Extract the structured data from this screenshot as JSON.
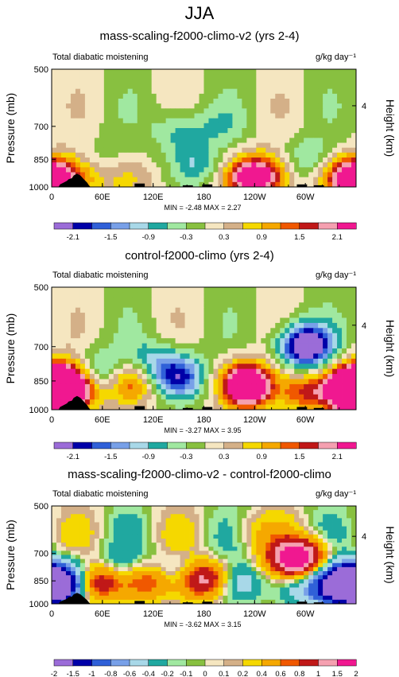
{
  "page": {
    "title": "JJA"
  },
  "colors": {
    "palette": [
      "#9b6cd8",
      "#0000a8",
      "#3060d8",
      "#78a0e8",
      "#a8d8e8",
      "#20a8a0",
      "#a0e8a0",
      "#88c040",
      "#f5e6c0",
      "#d4b088",
      "#f5d800",
      "#f5a800",
      "#f05800",
      "#c01818",
      "#f5a0b0",
      "#f01890"
    ],
    "land": "#000000"
  },
  "chart_data": [
    {
      "type": "heatmap",
      "title": "mass-scaling-f2000-climo-v2 (yrs 2-4)",
      "left_label": "Total diabatic moistening",
      "units_label": "g/kg day⁻¹",
      "ylabel": "Pressure (mb)",
      "ylabel_right": "Height (km)",
      "yticks": [
        "500",
        "700",
        "850",
        "1000"
      ],
      "yticks_right": [
        "4"
      ],
      "xticks": [
        "0",
        "60E",
        "120E",
        "180",
        "120W",
        "60W"
      ],
      "minmax": "MIN = -2.48  MAX =  2.27",
      "colorbar_labels": [
        "-2.1",
        "-1.5",
        "-0.9",
        "-0.3",
        "0.3",
        "0.9",
        "1.5",
        "2.1"
      ],
      "colorbar_label_slots": [
        1,
        3,
        5,
        7,
        9,
        11,
        13,
        15
      ],
      "levels": [
        -2.1,
        -1.8,
        -1.5,
        -1.2,
        -0.9,
        -0.6,
        -0.3,
        0,
        0.3,
        0.6,
        0.9,
        1.2,
        1.5,
        1.8,
        2.1
      ],
      "min": -2.48,
      "max": 2.27,
      "features": [
        {
          "lon": 6,
          "p": 960,
          "value": 1.2
        },
        {
          "lon": 40,
          "p": 930,
          "value": 0.9
        },
        {
          "lon": 55,
          "p": 870,
          "value": -0.5
        },
        {
          "lon": 90,
          "p": 950,
          "value": 0.7
        },
        {
          "lon": 170,
          "p": 880,
          "value": -0.9
        },
        {
          "lon": 150,
          "p": 720,
          "value": -0.8
        },
        {
          "lon": 200,
          "p": 700,
          "value": -0.4
        },
        {
          "lon": 230,
          "p": 950,
          "value": 2.0
        },
        {
          "lon": 255,
          "p": 930,
          "value": 1.4
        },
        {
          "lon": 300,
          "p": 850,
          "value": -0.7
        },
        {
          "lon": 350,
          "p": 950,
          "value": 2.2
        }
      ]
    },
    {
      "type": "heatmap",
      "title": "control-f2000-climo (yrs 2-4)",
      "left_label": "Total diabatic moistening",
      "units_label": "g/kg day⁻¹",
      "ylabel": "Pressure (mb)",
      "ylabel_right": "Height (km)",
      "yticks": [
        "500",
        "700",
        "850",
        "1000"
      ],
      "yticks_right": [
        "4"
      ],
      "xticks": [
        "0",
        "60E",
        "120E",
        "180",
        "120W",
        "60W"
      ],
      "minmax": "MIN = -3.27  MAX =  3.95",
      "colorbar_labels": [
        "-2.1",
        "-1.5",
        "-0.9",
        "-0.3",
        "0.3",
        "0.9",
        "1.5",
        "2.1"
      ],
      "colorbar_label_slots": [
        1,
        3,
        5,
        7,
        9,
        11,
        13,
        15
      ],
      "levels": [
        -2.1,
        -1.8,
        -1.5,
        -1.2,
        -0.9,
        -0.6,
        -0.3,
        0,
        0.3,
        0.6,
        0.9,
        1.2,
        1.5,
        1.8,
        2.1
      ],
      "min": -3.27,
      "max": 3.95,
      "features": [
        {
          "lon": 4,
          "p": 900,
          "value": 2.5
        },
        {
          "lon": 35,
          "p": 870,
          "value": 2.2
        },
        {
          "lon": 55,
          "p": 820,
          "value": -1.7
        },
        {
          "lon": 95,
          "p": 850,
          "value": 2.0
        },
        {
          "lon": 115,
          "p": 780,
          "value": -1.2
        },
        {
          "lon": 150,
          "p": 830,
          "value": -2.0
        },
        {
          "lon": 230,
          "p": 870,
          "value": 3.5
        },
        {
          "lon": 300,
          "p": 700,
          "value": -3.0
        },
        {
          "lon": 300,
          "p": 900,
          "value": 1.5
        },
        {
          "lon": 355,
          "p": 880,
          "value": 3.2
        }
      ]
    },
    {
      "type": "heatmap",
      "title": "mass-scaling-f2000-climo-v2 - control-f2000-climo",
      "left_label": "Total diabatic moistening",
      "units_label": "g/kg day⁻¹",
      "ylabel": "Pressure (mb)",
      "ylabel_right": "Height (km)",
      "yticks": [
        "500",
        "700",
        "850",
        "1000"
      ],
      "yticks_right": [
        "4"
      ],
      "xticks": [
        "0",
        "60E",
        "120E",
        "180",
        "120W",
        "60W"
      ],
      "minmax": "MIN = -3.62  MAX =  3.15",
      "colorbar_labels": [
        "-2",
        "-1.5",
        "-1",
        "-0.8",
        "-0.6",
        "-0.4",
        "-0.2",
        "-0.1",
        "0",
        "0.1",
        "0.2",
        "0.4",
        "0.6",
        "0.8",
        "1",
        "1.5",
        "2"
      ],
      "colorbar_label_slots": [
        0,
        1,
        2,
        3,
        4,
        5,
        6,
        7,
        8,
        9,
        10,
        11,
        12,
        13,
        14,
        15,
        16
      ],
      "levels": [
        -2,
        -1.5,
        -1,
        -0.8,
        -0.6,
        -0.4,
        -0.2,
        -0.1,
        0,
        0.1,
        0.2,
        0.4,
        0.6,
        0.8,
        1,
        1.5,
        2
      ],
      "min": -3.62,
      "max": 3.15,
      "features": [
        {
          "lon": 5,
          "p": 880,
          "value": -2.5
        },
        {
          "lon": 30,
          "p": 800,
          "value": -0.6
        },
        {
          "lon": 55,
          "p": 850,
          "value": 1.8
        },
        {
          "lon": 80,
          "p": 800,
          "value": -0.7
        },
        {
          "lon": 110,
          "p": 850,
          "value": 1.2
        },
        {
          "lon": 150,
          "p": 800,
          "value": -0.7
        },
        {
          "lon": 180,
          "p": 840,
          "value": 2.0
        },
        {
          "lon": 215,
          "p": 860,
          "value": -0.8
        },
        {
          "lon": 290,
          "p": 720,
          "value": 2.8
        },
        {
          "lon": 300,
          "p": 900,
          "value": -0.6
        },
        {
          "lon": 345,
          "p": 870,
          "value": -3.0
        },
        {
          "lon": 240,
          "p": 600,
          "value": 0.3
        }
      ]
    }
  ]
}
